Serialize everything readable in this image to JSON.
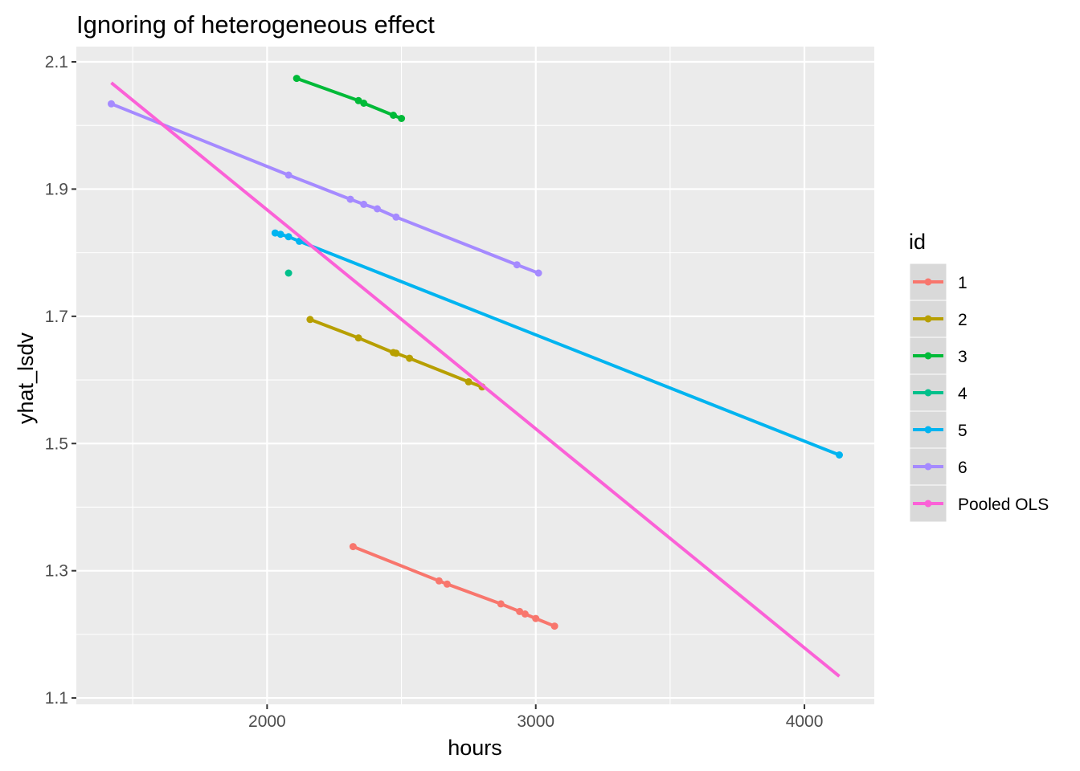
{
  "chart_data": {
    "type": "line",
    "title": "Ignoring of heterogeneous effect",
    "xlabel": "hours",
    "ylabel": "yhat_lsdv",
    "xlim": [
      1290,
      4260
    ],
    "ylim": [
      1.09,
      2.124
    ],
    "x_ticks": [
      2000,
      3000,
      4000
    ],
    "y_ticks": [
      1.1,
      1.3,
      1.5,
      1.7,
      1.9,
      2.1
    ],
    "x_tick_labels": [
      "2000",
      "3000",
      "4000"
    ],
    "y_tick_labels": [
      "1.1",
      "1.3",
      "1.5",
      "1.7",
      "1.9",
      "2.1"
    ],
    "grid": true,
    "legend": {
      "title": "id",
      "position": "right"
    },
    "series": [
      {
        "name": "1",
        "color": "#F8766D",
        "line": true,
        "points": [
          [
            2320,
            1.338
          ],
          [
            2640,
            1.284
          ],
          [
            2670,
            1.279
          ],
          [
            2870,
            1.248
          ],
          [
            2940,
            1.236
          ],
          [
            2960,
            1.232
          ],
          [
            3000,
            1.225
          ],
          [
            3070,
            1.213
          ]
        ]
      },
      {
        "name": "2",
        "color": "#B79F00",
        "line": true,
        "points": [
          [
            2160,
            1.695
          ],
          [
            2340,
            1.666
          ],
          [
            2470,
            1.643
          ],
          [
            2480,
            1.642
          ],
          [
            2530,
            1.634
          ],
          [
            2750,
            1.597
          ],
          [
            2800,
            1.589
          ]
        ]
      },
      {
        "name": "3",
        "color": "#00BA38",
        "line": true,
        "points": [
          [
            2110,
            2.074
          ],
          [
            2340,
            2.039
          ],
          [
            2360,
            2.035
          ],
          [
            2470,
            2.016
          ],
          [
            2500,
            2.011
          ]
        ]
      },
      {
        "name": "4",
        "color": "#00BFC4",
        "line": false,
        "line_color": "#00C08B",
        "points": [
          [
            2080,
            1.768
          ]
        ]
      },
      {
        "name": "5",
        "color": "#00B4F0",
        "line": true,
        "points": [
          [
            2030,
            1.831
          ],
          [
            2050,
            1.829
          ],
          [
            2080,
            1.825
          ],
          [
            2120,
            1.818
          ],
          [
            4130,
            1.482
          ]
        ]
      },
      {
        "name": "6",
        "color": "#A58AFF",
        "line": true,
        "points": [
          [
            1420,
            2.034
          ],
          [
            2080,
            1.922
          ],
          [
            2310,
            1.884
          ],
          [
            2360,
            1.876
          ],
          [
            2410,
            1.869
          ],
          [
            2480,
            1.856
          ],
          [
            2930,
            1.781
          ],
          [
            3010,
            1.768
          ]
        ]
      },
      {
        "name": "Pooled OLS",
        "color": "#FB61D7",
        "line": true,
        "points_shown": false,
        "points": [
          [
            1420,
            2.067
          ],
          [
            4130,
            1.134
          ]
        ]
      }
    ]
  }
}
